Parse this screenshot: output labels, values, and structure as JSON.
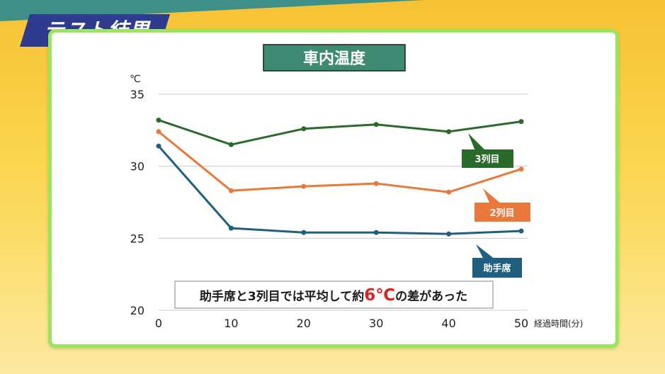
{
  "banner": {
    "title": "テスト結果"
  },
  "annotation": {
    "before": "助手席と3列目では平均して約",
    "highlight": "6℃",
    "after": "の差があった"
  },
  "colors": {
    "banner_bg": "#2e3b8f",
    "panel_border": "#9be55c",
    "title_bg": "#3f8a72",
    "third_row": "#2a6a2a",
    "second_row": "#e8793a",
    "passenger": "#1f5f7f",
    "highlight": "#e02020"
  },
  "chart_data": {
    "type": "line",
    "title": "車内温度",
    "ylabel": "℃",
    "xlabel": "経過時間(分)",
    "x": [
      0,
      10,
      20,
      30,
      40,
      50
    ],
    "ylim": [
      20,
      35
    ],
    "yticks": [
      35,
      30,
      25,
      20
    ],
    "xticks": [
      0,
      10,
      20,
      30,
      40,
      50
    ],
    "grid": true,
    "series": [
      {
        "name": "3列目",
        "values": [
          33.2,
          31.5,
          32.6,
          32.9,
          32.4,
          33.1
        ]
      },
      {
        "name": "2列目",
        "values": [
          32.4,
          28.3,
          28.6,
          28.8,
          28.2,
          29.8
        ]
      },
      {
        "name": "助手席",
        "values": [
          31.4,
          25.7,
          25.4,
          25.4,
          25.3,
          25.5
        ]
      }
    ]
  }
}
